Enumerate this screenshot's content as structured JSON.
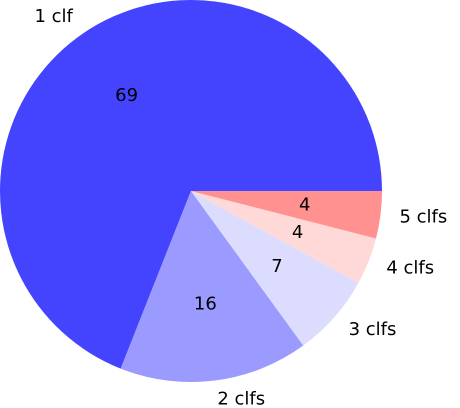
{
  "chart_data": {
    "type": "pie",
    "categories": [
      "1 clf",
      "2 clfs",
      "3 clfs",
      "4 clfs",
      "5 clfs"
    ],
    "values": [
      69,
      16,
      7,
      4,
      4
    ],
    "colors": [
      "#4444ff",
      "#9a9aff",
      "#dcdcff",
      "#ffd8d8",
      "#ff9191"
    ]
  }
}
